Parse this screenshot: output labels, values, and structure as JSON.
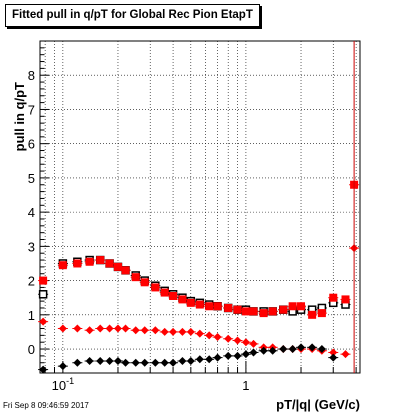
{
  "title": "Fitted pull in q/pT for Global Rec Pion EtapT",
  "footer_timestamp": "Fri Sep  8 09:46:59 2017",
  "chart_data": {
    "type": "scatter",
    "title": "Fitted pull in q/pT for Global Rec Pion EtapT",
    "xlabel": "pT/|q| (GeV/c)",
    "ylabel": "pull in q/pT",
    "xscale": "log",
    "xlim": [
      0.075,
      4.2
    ],
    "ylim": [
      -0.7,
      9.0
    ],
    "grid": true,
    "x_ticks": [
      "10^-1",
      "1"
    ],
    "y_ticks": [
      "0",
      "1",
      "2",
      "3",
      "4",
      "5",
      "6",
      "7",
      "8"
    ],
    "series": [
      {
        "marker": "square-open",
        "color": "#000000",
        "x": [
          0.078,
          0.1,
          0.12,
          0.14,
          0.16,
          0.18,
          0.2,
          0.22,
          0.25,
          0.28,
          0.32,
          0.36,
          0.4,
          0.45,
          0.5,
          0.56,
          0.63,
          0.7,
          0.8,
          0.9,
          1.0,
          1.1,
          1.25,
          1.4,
          1.6,
          1.8,
          2.0,
          2.3,
          2.6,
          3.0,
          3.5
        ],
        "y": [
          1.6,
          2.5,
          2.55,
          2.6,
          2.6,
          2.5,
          2.4,
          2.3,
          2.15,
          2.0,
          1.85,
          1.7,
          1.6,
          1.5,
          1.4,
          1.35,
          1.3,
          1.25,
          1.2,
          1.15,
          1.15,
          1.1,
          1.1,
          1.1,
          1.15,
          1.1,
          1.15,
          1.15,
          1.2,
          1.35,
          1.3
        ]
      },
      {
        "marker": "square-filled",
        "color": "#ff0000",
        "x": [
          0.078,
          0.1,
          0.12,
          0.14,
          0.16,
          0.18,
          0.2,
          0.22,
          0.25,
          0.28,
          0.32,
          0.36,
          0.4,
          0.45,
          0.5,
          0.56,
          0.63,
          0.7,
          0.8,
          0.9,
          1.0,
          1.1,
          1.25,
          1.4,
          1.6,
          1.8,
          2.0,
          2.3,
          2.6,
          3.0,
          3.5,
          3.9
        ],
        "y": [
          2.0,
          2.45,
          2.5,
          2.55,
          2.6,
          2.5,
          2.4,
          2.3,
          2.1,
          1.95,
          1.8,
          1.65,
          1.55,
          1.45,
          1.35,
          1.3,
          1.25,
          1.25,
          1.2,
          1.15,
          1.1,
          1.1,
          1.05,
          1.1,
          1.15,
          1.25,
          1.25,
          1.0,
          1.05,
          1.5,
          1.45,
          4.8
        ]
      },
      {
        "marker": "diamond-filled",
        "color": "#ff0000",
        "x": [
          0.078,
          0.1,
          0.12,
          0.14,
          0.16,
          0.18,
          0.2,
          0.22,
          0.25,
          0.28,
          0.32,
          0.36,
          0.4,
          0.45,
          0.5,
          0.56,
          0.63,
          0.7,
          0.8,
          0.9,
          1.0,
          1.1,
          1.25,
          1.4,
          1.6,
          1.8,
          2.0,
          2.3,
          2.6,
          3.0,
          3.5,
          3.9
        ],
        "y": [
          0.8,
          0.6,
          0.6,
          0.55,
          0.6,
          0.6,
          0.6,
          0.6,
          0.55,
          0.55,
          0.55,
          0.5,
          0.5,
          0.5,
          0.5,
          0.45,
          0.4,
          0.35,
          0.3,
          0.25,
          0.2,
          0.15,
          0.05,
          0.05,
          0.0,
          0.0,
          0.0,
          0.0,
          -0.05,
          -0.1,
          -0.15,
          2.95
        ]
      },
      {
        "marker": "diamond-filled",
        "color": "#000000",
        "x": [
          0.078,
          0.1,
          0.12,
          0.14,
          0.16,
          0.18,
          0.2,
          0.22,
          0.25,
          0.28,
          0.32,
          0.36,
          0.4,
          0.45,
          0.5,
          0.56,
          0.63,
          0.7,
          0.8,
          0.9,
          1.0,
          1.1,
          1.25,
          1.4,
          1.6,
          1.8,
          2.0,
          2.3,
          2.6,
          3.0
        ],
        "y": [
          -0.6,
          -0.5,
          -0.4,
          -0.35,
          -0.35,
          -0.35,
          -0.35,
          -0.4,
          -0.4,
          -0.4,
          -0.4,
          -0.4,
          -0.4,
          -0.35,
          -0.35,
          -0.3,
          -0.3,
          -0.25,
          -0.2,
          -0.2,
          -0.15,
          -0.1,
          -0.05,
          -0.05,
          0.0,
          0.0,
          0.05,
          0.05,
          0.0,
          -0.25
        ]
      }
    ]
  }
}
